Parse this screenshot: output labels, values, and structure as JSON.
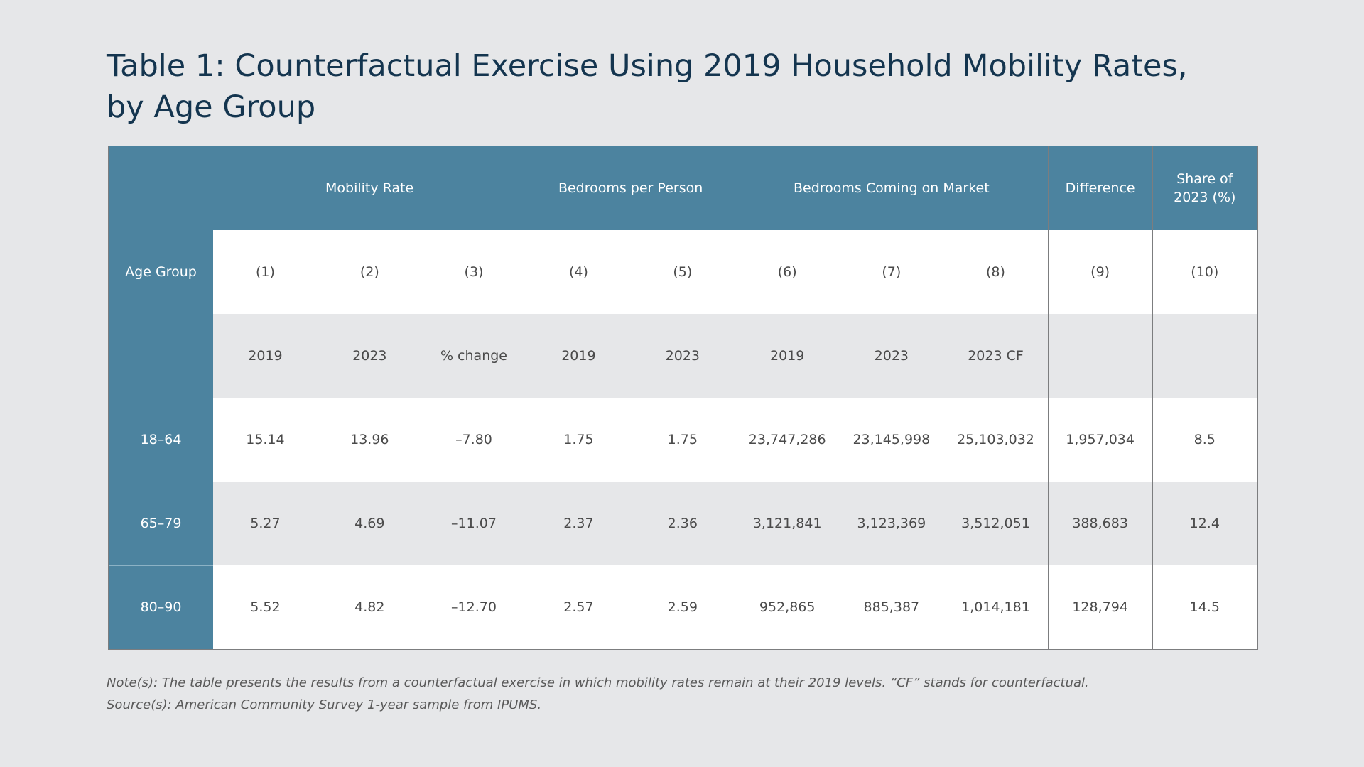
{
  "title_line1": "Table 1: Counterfactual Exercise Using 2019 Household Mobility Rates,",
  "title_line2": "by Age Group",
  "colors": {
    "header_bg": "#4c839f",
    "background": "#e6e7e9",
    "title": "#14354f"
  },
  "table": {
    "age_group_label": "Age Group",
    "groups": {
      "mobility_rate": "Mobility Rate",
      "bedrooms_per_person": "Bedrooms per Person",
      "bedrooms_coming_on_market": "Bedrooms Coming on Market",
      "difference": "Difference",
      "share_line1": "Share of",
      "share_line2": "2023 (%)"
    },
    "column_numbers": [
      "(1)",
      "(2)",
      "(3)",
      "(4)",
      "(5)",
      "(6)",
      "(7)",
      "(8)",
      "(9)",
      "(10)"
    ],
    "column_years": [
      "2019",
      "2023",
      "% change",
      "2019",
      "2023",
      "2019",
      "2023",
      "2023 CF",
      "",
      ""
    ],
    "rows": [
      {
        "age": "18–64",
        "cells": [
          "15.14",
          "13.96",
          "–7.80",
          "1.75",
          "1.75",
          "23,747,286",
          "23,145,998",
          "25,103,032",
          "1,957,034",
          "8.5"
        ]
      },
      {
        "age": "65–79",
        "cells": [
          "5.27",
          "4.69",
          "–11.07",
          "2.37",
          "2.36",
          "3,121,841",
          "3,123,369",
          "3,512,051",
          "388,683",
          "12.4"
        ]
      },
      {
        "age": "80–90",
        "cells": [
          "5.52",
          "4.82",
          "–12.70",
          "2.57",
          "2.59",
          "952,865",
          "885,387",
          "1,014,181",
          "128,794",
          "14.5"
        ]
      }
    ]
  },
  "notes": {
    "note": "Note(s): The table presents the results from a counterfactual exercise in which mobility rates remain at their 2019 levels. “CF” stands for counterfactual.",
    "source": "Source(s): American Community Survey 1-year sample from IPUMS."
  }
}
